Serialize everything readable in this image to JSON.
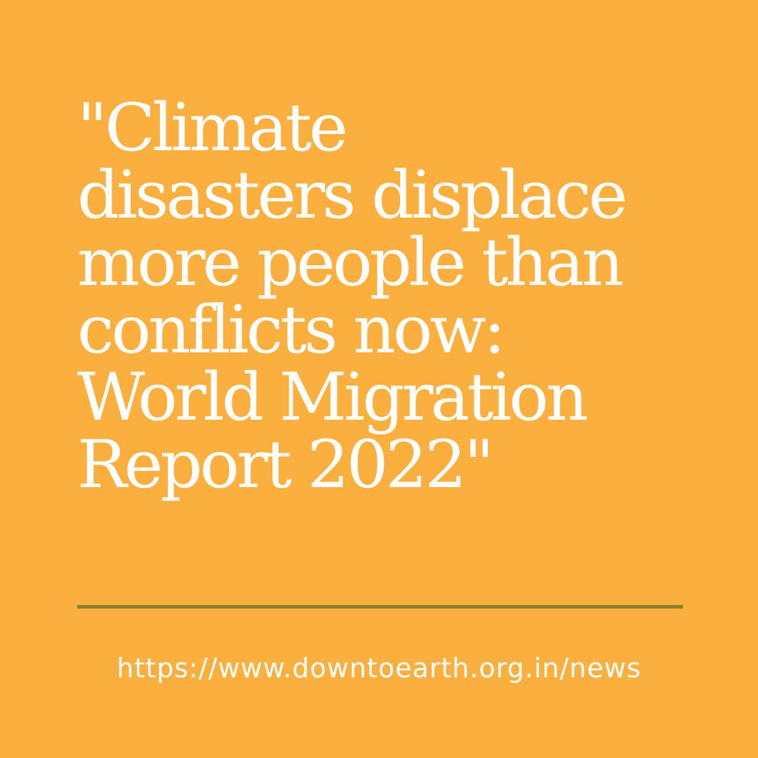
{
  "quote": {
    "lines": [
      "\"Climate",
      "disasters displace",
      "more people than",
      "conflicts now:",
      "World Migration",
      "Report 2022\""
    ]
  },
  "source": {
    "url": "https://www.downtoearth.org.in/news"
  },
  "colors": {
    "background": "#FBAF3E",
    "text": "#FFFFFF",
    "divider": "#8A7F2E"
  }
}
